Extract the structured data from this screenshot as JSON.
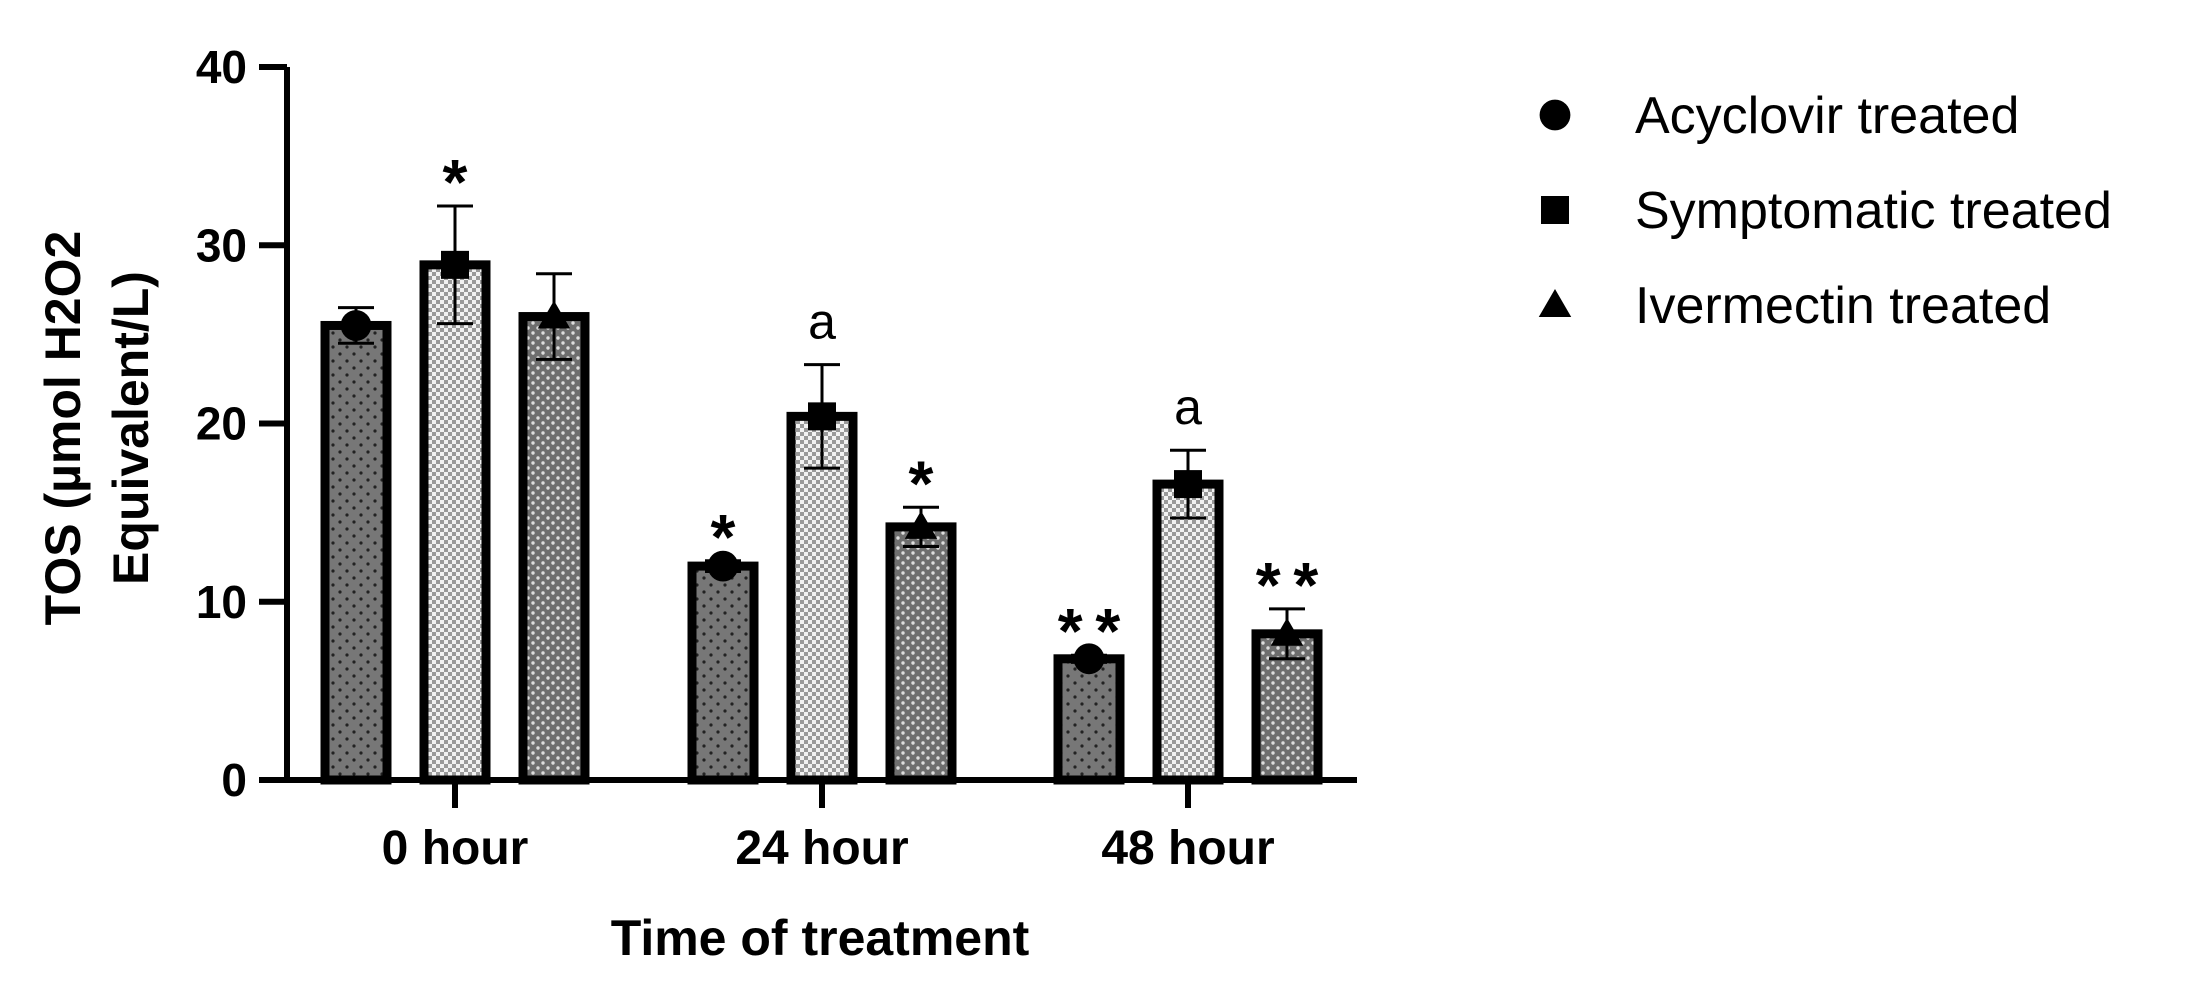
{
  "chart_data": {
    "type": "bar",
    "title": "",
    "xlabel": "Time of treatment",
    "ylabel": "TOS (µmol H2O2 Equivalent/L)",
    "ylabel_lines": [
      "TOS (µmol H2O2",
      "Equivalent/L)"
    ],
    "categories": [
      "0 hour",
      "24 hour",
      "48 hour"
    ],
    "ylim": [
      0,
      40
    ],
    "yticks": [
      0,
      10,
      20,
      30,
      40
    ],
    "ytick_labels": [
      "0",
      "10",
      "20",
      "30",
      "40"
    ],
    "legend_position": "right",
    "series": [
      {
        "name": "Acyclovir treated",
        "marker": "circle",
        "pattern": "dots",
        "values": [
          25.5,
          12.0,
          6.8
        ],
        "errors": [
          1.0,
          0.3,
          0.2
        ],
        "annotations": [
          "",
          "*",
          "**"
        ]
      },
      {
        "name": "Symptomatic treated",
        "marker": "square",
        "pattern": "checker",
        "values": [
          28.9,
          20.4,
          16.6
        ],
        "errors": [
          3.3,
          2.9,
          1.9
        ],
        "annotations": [
          "*",
          "a",
          "a"
        ]
      },
      {
        "name": "Ivermectin treated",
        "marker": "triangle",
        "pattern": "dense-dots",
        "values": [
          26.0,
          14.2,
          8.2
        ],
        "errors": [
          2.4,
          1.1,
          1.4
        ],
        "annotations": [
          "",
          "*",
          "**"
        ]
      }
    ]
  }
}
